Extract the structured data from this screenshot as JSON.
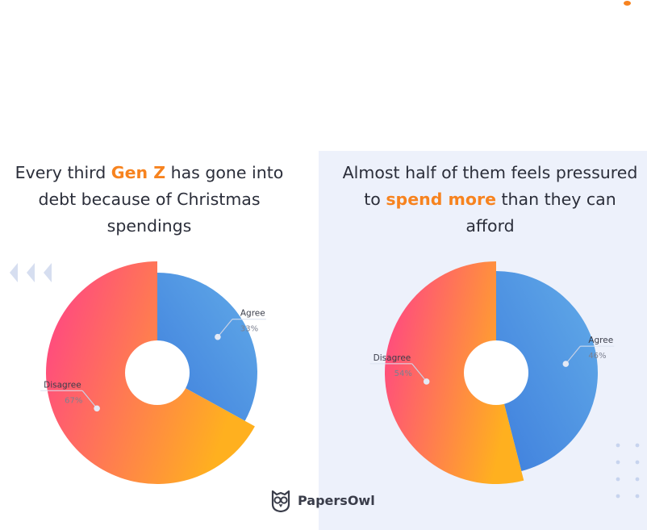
{
  "panels": {
    "left": {
      "title_line1_pre": "Every third ",
      "title_line1_hl": "Gen Z",
      "title_line1_post": " has gone into",
      "title_line2": "debt because of Christmas",
      "title_line3": "spendings"
    },
    "right": {
      "title_line1": "Almost half of them feels pressured",
      "title_line2_pre": "to ",
      "title_line2_hl": "spend more",
      "title_line2_post": " than they can",
      "title_line3": "afford"
    }
  },
  "brand": {
    "name": "PapersOwl"
  },
  "colors": {
    "accent": "#f7831f",
    "agree_start": "#3f7fdd",
    "agree_end": "#62abe8",
    "disagree_start": "#ff3f8a",
    "disagree_end": "#ffb01f",
    "panel_bg": "#edf1fb"
  },
  "chart_data": [
    {
      "type": "pie",
      "categories": [
        "Agree",
        "Disagree"
      ],
      "values": [
        33,
        67
      ],
      "value_labels": [
        "33%",
        "67%"
      ]
    },
    {
      "type": "pie",
      "categories": [
        "Agree",
        "Disagree"
      ],
      "values": [
        46,
        54
      ],
      "value_labels": [
        "46%",
        "54%"
      ]
    }
  ]
}
